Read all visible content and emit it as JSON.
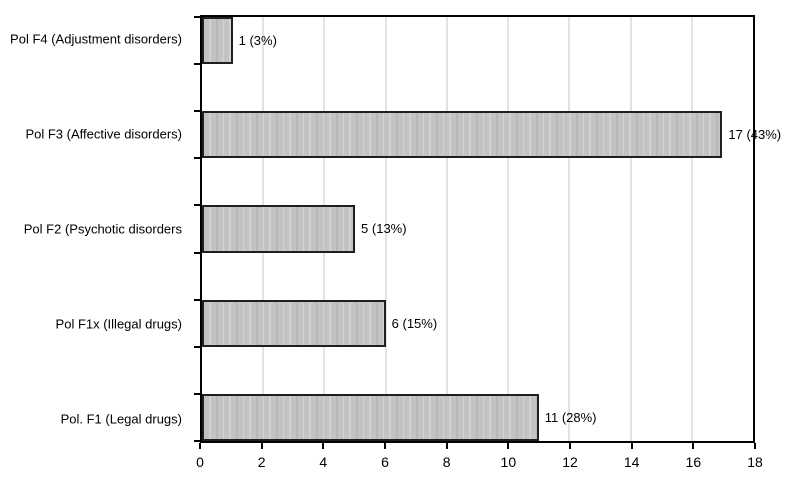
{
  "chart_data": {
    "type": "bar",
    "orientation": "horizontal",
    "categories": [
      "Pol F4 (Adjustment disorders)",
      "Pol F3 (Affective disorders)",
      "Pol F2  (Psychotic disorders",
      "Pol F1x (Illegal drugs)",
      "Pol. F1 (Legal drugs)"
    ],
    "values": [
      1,
      17,
      5,
      6,
      11
    ],
    "data_labels": [
      "1 (3%)",
      "17 (43%)",
      "5 (13%)",
      "6 (15%)",
      "11 (28%)"
    ],
    "xlim": [
      0,
      18
    ],
    "x_ticks": [
      0,
      2,
      4,
      6,
      8,
      10,
      12,
      14,
      16,
      18
    ],
    "legend": "none",
    "grid": "vertical",
    "colors": {
      "bar_fill": "#c3c3c3",
      "bar_fill_streak_light": "#d2d2d2",
      "bar_fill_streak_dark": "#b7b7b7",
      "bar_border": "#1f1f1f",
      "frame": "#000000",
      "gridline": "#e3e3e3",
      "text": "#000000"
    }
  }
}
